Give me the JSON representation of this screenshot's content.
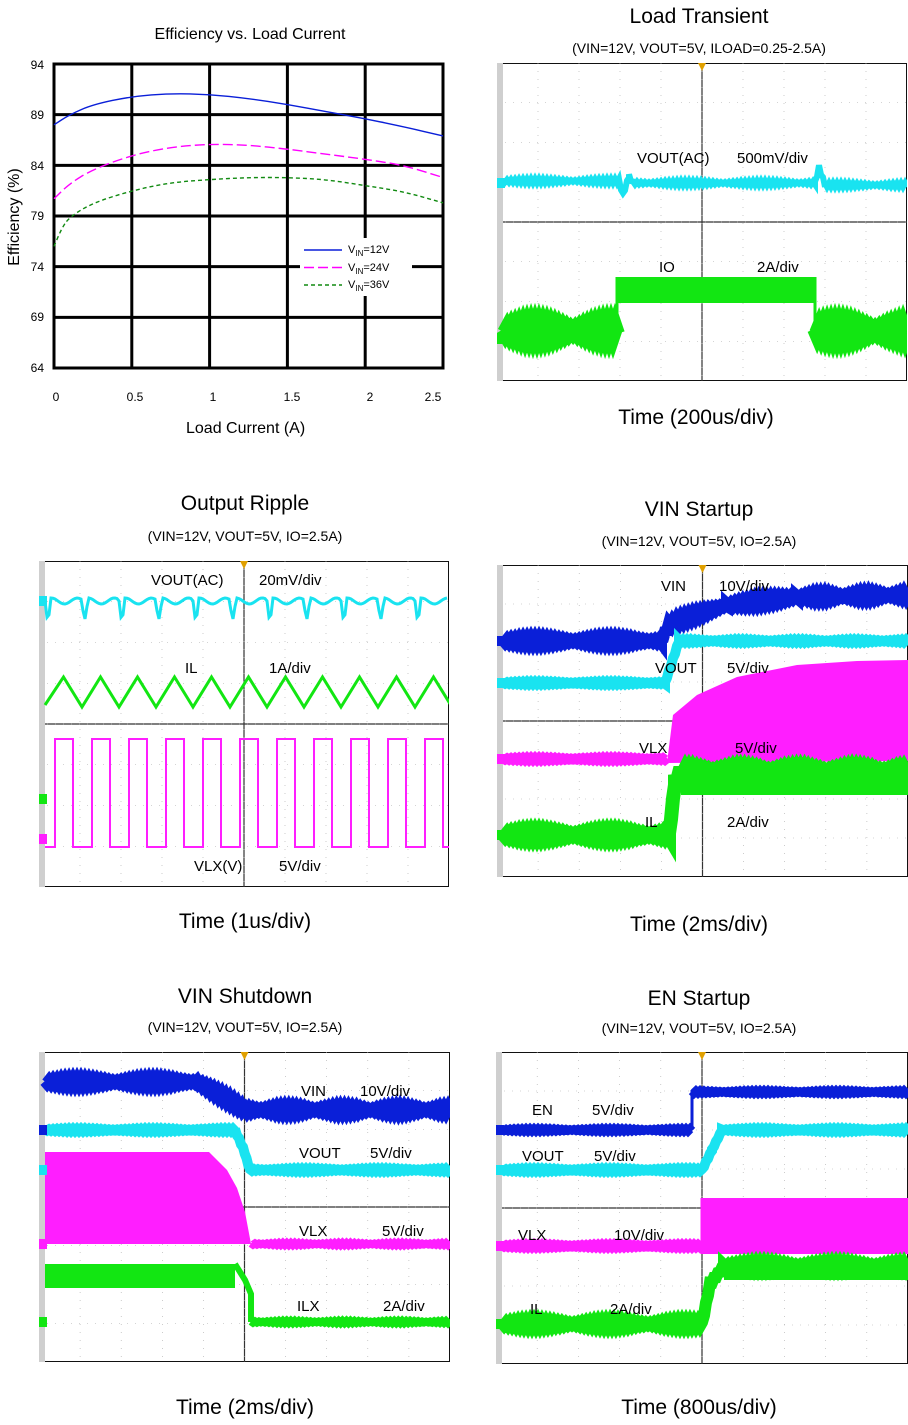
{
  "chart_data": [
    {
      "type": "line",
      "title": "Efficiency vs. Load Current",
      "xlabel": "Load Current (A)",
      "ylabel": "Efficiency (%)",
      "xlim": [
        0,
        2.5
      ],
      "ylim": [
        64,
        94
      ],
      "xticks": [
        "0",
        "0.5",
        "1",
        "1.5",
        "2",
        "2.5"
      ],
      "yticks": [
        "94",
        "89",
        "84",
        "79",
        "74",
        "69",
        "64"
      ],
      "grid": true,
      "legend": "center-right",
      "series": [
        {
          "name": "VIN=12V",
          "color": "#0a1fd8",
          "style": "solid",
          "x": [
            0,
            0.1,
            0.25,
            0.5,
            0.75,
            1.0,
            1.25,
            1.5,
            1.75,
            2.0,
            2.25,
            2.5
          ],
          "y": [
            88.0,
            89.0,
            90.0,
            90.8,
            91.1,
            91.0,
            90.6,
            90.0,
            89.3,
            88.6,
            87.8,
            86.9
          ]
        },
        {
          "name": "VIN=24V",
          "color": "#ff00ff",
          "style": "dashed",
          "x": [
            0,
            0.1,
            0.25,
            0.5,
            0.75,
            1.0,
            1.25,
            1.5,
            1.75,
            2.0,
            2.25,
            2.5
          ],
          "y": [
            80.7,
            82.2,
            83.6,
            85.0,
            85.8,
            86.1,
            86.0,
            85.6,
            85.1,
            84.6,
            84.0,
            82.8
          ]
        },
        {
          "name": "VIN=36V",
          "color": "#118a11",
          "style": "dashed",
          "x": [
            0,
            0.05,
            0.1,
            0.25,
            0.5,
            0.75,
            1.0,
            1.25,
            1.5,
            1.75,
            2.0,
            2.25,
            2.5
          ],
          "y": [
            76.0,
            77.8,
            78.9,
            80.3,
            81.5,
            82.3,
            82.6,
            82.8,
            82.8,
            82.6,
            82.0,
            81.4,
            80.3
          ]
        }
      ]
    }
  ],
  "legend_labels": [
    {
      "v": "V",
      "sub": "IN",
      "rest": "=12V"
    },
    {
      "v": "V",
      "sub": "IN",
      "rest": "=24V"
    },
    {
      "v": "V",
      "sub": "IN",
      "rest": "=36V"
    }
  ],
  "scopes": [
    {
      "title": "Load Transient",
      "cond": "(VIN=12V, VOUT=5V, ILOAD=0.25-2.5A)",
      "time": "Time (200us/div)",
      "labels": [
        "VOUT(AC)",
        "500mV/div",
        "IO",
        "2A/div"
      ]
    },
    {
      "title": "Output Ripple",
      "cond": "(VIN=12V, VOUT=5V, IO=2.5A)",
      "time": "Time (1us/div)",
      "labels": [
        "VOUT(AC)",
        "20mV/div",
        "IL",
        "1A/div",
        "VLX(V)",
        "5V/div"
      ]
    },
    {
      "title": "VIN Startup",
      "cond": "(VIN=12V, VOUT=5V, IO=2.5A)",
      "time": "Time (2ms/div)",
      "labels": [
        "VIN",
        "10V/div",
        "VOUT",
        "5V/div",
        "VLX",
        "5V/div",
        "IL",
        "2A/div"
      ]
    },
    {
      "title": "VIN Shutdown",
      "cond": "(VIN=12V, VOUT=5V, IO=2.5A)",
      "time": "Time (2ms/div)",
      "labels": [
        "VIN",
        "10V/div",
        "VOUT",
        "5V/div",
        "VLX",
        "5V/div",
        "ILX",
        "2A/div"
      ]
    },
    {
      "title": "EN Startup",
      "cond": "(VIN=12V, VOUT=5V, IO=2.5A)",
      "time": "Time (800us/div)",
      "labels": [
        "EN",
        "5V/div",
        "VOUT",
        "5V/div",
        "VLX",
        "10V/div",
        "IL",
        "2A/div"
      ]
    }
  ],
  "colors": {
    "blue": "#0a1fd8",
    "cyan": "#19e3f0",
    "magenta": "#ff1eff",
    "green": "#12e612",
    "screen": "#ffffff"
  }
}
